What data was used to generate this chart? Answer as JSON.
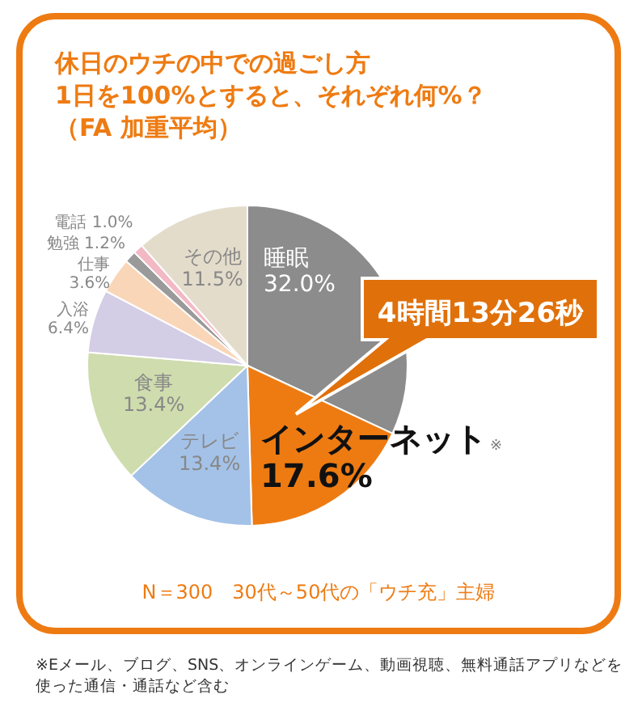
{
  "chart_data": {
    "type": "pie",
    "title": "休日のウチの中での過ごし方",
    "subtitle": "1日を100%とすると、それぞれ何%？（FA 加重平均）",
    "categories": [
      "睡眠",
      "インターネット",
      "テレビ",
      "食事",
      "入浴",
      "仕事",
      "勉強",
      "電話",
      "その他"
    ],
    "values": [
      32.0,
      17.6,
      13.4,
      13.4,
      6.4,
      3.6,
      1.2,
      1.0,
      11.5
    ],
    "colors": [
      "#8c8c8c",
      "#ee7b12",
      "#a4c2e8",
      "#cfdcae",
      "#d3cde6",
      "#f9d6b8",
      "#9a9a9a",
      "#f2b9c4",
      "#e4dccb"
    ],
    "value_labels": [
      "32.0%",
      "17.6%",
      "13.4%",
      "13.4%",
      "6.4%",
      "3.6%",
      "1.2%",
      "1.0%",
      "11.5%"
    ],
    "annotations": [
      "4時間13分26秒",
      "※",
      "N＝300　30代～50代の「ウチ充」主婦",
      "※Eメール、ブログ、SNS、オンラインゲーム、動画視聴、無料通話アプリなどを使った通信・通話など含む"
    ]
  }
}
